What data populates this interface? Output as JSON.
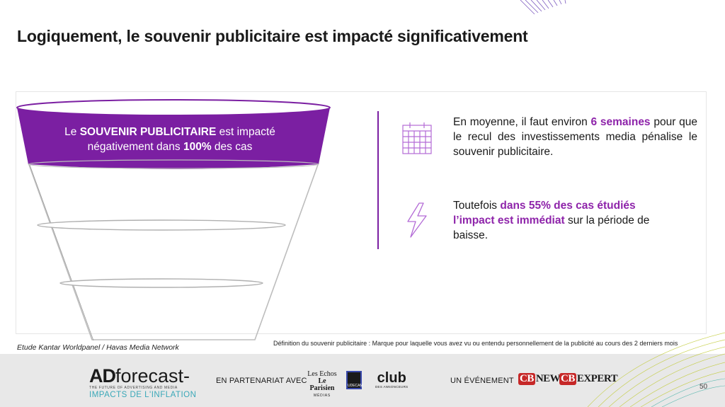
{
  "title": "Logiquement, le souvenir publicitaire est impacté significativement",
  "funnel": {
    "top_text_1": "Le ",
    "top_text_bold_1": "SOUVENIR PUBLICITAIRE",
    "top_text_2": " est impacté négativement dans ",
    "top_text_bold_2": "100%",
    "top_text_3": " des cas",
    "accent_color": "#7b1fa2"
  },
  "points": [
    {
      "icon": "calendar-icon",
      "text_1": "En moyenne, il faut environ ",
      "highlight": "6 semaines",
      "text_2": " pour que le recul des investissements media pénalise le souvenir publicitaire."
    },
    {
      "icon": "lightning-icon",
      "text_1": "Toutefois ",
      "highlight": "dans 55% des cas étudiés l’impact est immédiat",
      "text_2": " sur la période de baisse."
    }
  ],
  "source": "Etude Kantar Worldpanel / Havas Media Network",
  "definition": "Définition du souvenir publicitaire : Marque pour laquelle vous avez vu ou entendu personnellement de la publicité au cours des 2 derniers mois",
  "footer": {
    "brand_ad": "AD",
    "brand_forecast": "forecast-",
    "brand_tagline": "THE FUTURE OF ADVERTISING AND MEDIA",
    "brand_sub": "IMPACTS DE L'INFLATION",
    "partner_label": "EN PARTENARIAT AVEC",
    "lesechos_1": "Les Echos",
    "lesechos_2": "Le Parisien",
    "lesechos_3": "MÉDIAS",
    "udecam": "UDECAM",
    "club": "club",
    "club_sub": "DES ANNONCEURS",
    "event_label": "UN ÉVÉNEMENT",
    "cb": "CB",
    "cbnews": "NEWS",
    "cbexpert": "EXPERT",
    "page_number": "50"
  }
}
